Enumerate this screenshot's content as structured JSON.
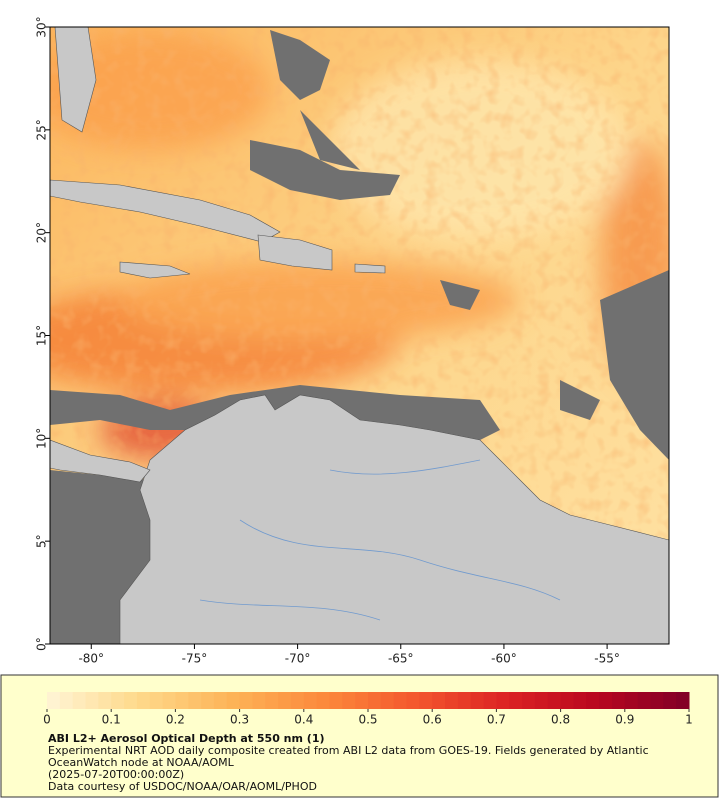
{
  "map": {
    "lonlim": [
      -82,
      -52
    ],
    "latlim": [
      0,
      30
    ],
    "lonticks": [
      {
        "value": -80,
        "label": "-80°"
      },
      {
        "value": -75,
        "label": "-75°"
      },
      {
        "value": -70,
        "label": "-70°"
      },
      {
        "value": -65,
        "label": "-65°"
      },
      {
        "value": -60,
        "label": "-60°"
      },
      {
        "value": -55,
        "label": "-55°"
      }
    ],
    "latticks": [
      {
        "value": 0,
        "label": "0°"
      },
      {
        "value": 5,
        "label": "5°"
      },
      {
        "value": 10,
        "label": "10°"
      },
      {
        "value": 15,
        "label": "15°"
      },
      {
        "value": 20,
        "label": "20°"
      },
      {
        "value": 25,
        "label": "25°"
      },
      {
        "value": 30,
        "label": "30°"
      }
    ]
  },
  "colorbar": {
    "clim": [
      0,
      1
    ],
    "ticks": [
      0,
      0.1,
      0.2,
      0.3,
      0.4,
      0.5,
      0.6,
      0.7,
      0.8,
      0.9,
      1
    ],
    "colormap": [
      "#fff5d6",
      "#fed98a",
      "#fdb458",
      "#fc8a3c",
      "#f4582e",
      "#dc2323",
      "#b8071f",
      "#800026"
    ]
  },
  "caption": {
    "title": "ABI L2+ Aerosol Optical Depth at 550 nm (1)",
    "description": "Experimental NRT AOD daily composite created from ABI L2 data from GOES-19. Fields generated by Atlantic OceanWatch node at NOAA/AOML",
    "time": "(2025-07-20T00:00:00Z)",
    "credit": "Data courtesy of USDOC/NOAA/OAR/AOML/PHOD"
  }
}
